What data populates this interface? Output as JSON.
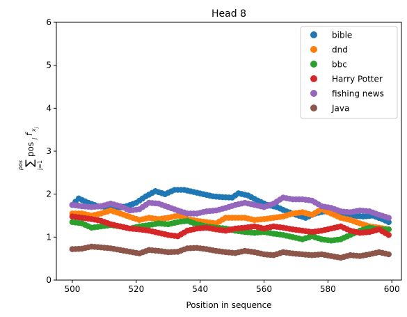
{
  "chart_data": {
    "type": "scatter",
    "title": "Head 8",
    "xlabel": "Position in sequence",
    "ylabel_parts": {
      "sum": "∑",
      "upper": "pos",
      "lower": "j=1",
      "main": "pos",
      "sub": "j",
      "f": "f",
      "fsub": "x",
      "fsubsub": "j"
    },
    "xlim": [
      495,
      603
    ],
    "ylim": [
      0,
      6
    ],
    "xticks": [
      500,
      520,
      540,
      560,
      580,
      600
    ],
    "yticks": [
      0,
      1,
      2,
      3,
      4,
      5,
      6
    ],
    "legend_position": "top-right",
    "x_range": [
      500,
      599
    ],
    "series": [
      {
        "name": "bible",
        "color": "#1f77b4",
        "keypoints": [
          [
            500,
            1.75
          ],
          [
            502,
            1.9
          ],
          [
            505,
            1.8
          ],
          [
            508,
            1.72
          ],
          [
            511,
            1.7
          ],
          [
            514,
            1.68
          ],
          [
            517,
            1.72
          ],
          [
            520,
            1.8
          ],
          [
            523,
            1.95
          ],
          [
            526,
            2.07
          ],
          [
            529,
            2.0
          ],
          [
            532,
            2.1
          ],
          [
            535,
            2.1
          ],
          [
            538,
            2.05
          ],
          [
            541,
            2.0
          ],
          [
            544,
            1.95
          ],
          [
            547,
            1.93
          ],
          [
            550,
            1.92
          ],
          [
            552,
            2.02
          ],
          [
            555,
            1.97
          ],
          [
            558,
            1.85
          ],
          [
            561,
            1.75
          ],
          [
            564,
            1.7
          ],
          [
            567,
            1.6
          ],
          [
            570,
            1.52
          ],
          [
            573,
            1.45
          ],
          [
            576,
            1.55
          ],
          [
            579,
            1.6
          ],
          [
            582,
            1.55
          ],
          [
            585,
            1.52
          ],
          [
            588,
            1.5
          ],
          [
            591,
            1.48
          ],
          [
            594,
            1.5
          ],
          [
            597,
            1.42
          ],
          [
            599,
            1.35
          ]
        ]
      },
      {
        "name": "dnd",
        "color": "#ff7f0e",
        "keypoints": [
          [
            500,
            1.55
          ],
          [
            503,
            1.55
          ],
          [
            506,
            1.5
          ],
          [
            509,
            1.55
          ],
          [
            512,
            1.62
          ],
          [
            515,
            1.55
          ],
          [
            518,
            1.47
          ],
          [
            521,
            1.4
          ],
          [
            524,
            1.45
          ],
          [
            527,
            1.42
          ],
          [
            530,
            1.45
          ],
          [
            533,
            1.5
          ],
          [
            536,
            1.42
          ],
          [
            539,
            1.38
          ],
          [
            542,
            1.35
          ],
          [
            545,
            1.32
          ],
          [
            548,
            1.45
          ],
          [
            551,
            1.45
          ],
          [
            554,
            1.45
          ],
          [
            557,
            1.4
          ],
          [
            560,
            1.42
          ],
          [
            563,
            1.45
          ],
          [
            566,
            1.48
          ],
          [
            569,
            1.55
          ],
          [
            572,
            1.58
          ],
          [
            575,
            1.52
          ],
          [
            578,
            1.65
          ],
          [
            581,
            1.55
          ],
          [
            584,
            1.45
          ],
          [
            587,
            1.4
          ],
          [
            590,
            1.32
          ],
          [
            593,
            1.25
          ],
          [
            596,
            1.22
          ],
          [
            599,
            1.18
          ]
        ]
      },
      {
        "name": "bbc",
        "color": "#2ca02c",
        "keypoints": [
          [
            500,
            1.35
          ],
          [
            503,
            1.32
          ],
          [
            506,
            1.22
          ],
          [
            509,
            1.25
          ],
          [
            512,
            1.28
          ],
          [
            515,
            1.25
          ],
          [
            518,
            1.2
          ],
          [
            521,
            1.25
          ],
          [
            524,
            1.28
          ],
          [
            527,
            1.32
          ],
          [
            530,
            1.3
          ],
          [
            533,
            1.35
          ],
          [
            536,
            1.38
          ],
          [
            539,
            1.3
          ],
          [
            542,
            1.25
          ],
          [
            545,
            1.22
          ],
          [
            548,
            1.2
          ],
          [
            551,
            1.15
          ],
          [
            554,
            1.12
          ],
          [
            557,
            1.1
          ],
          [
            560,
            1.12
          ],
          [
            563,
            1.08
          ],
          [
            566,
            1.05
          ],
          [
            569,
            1.0
          ],
          [
            572,
            0.95
          ],
          [
            575,
            1.02
          ],
          [
            578,
            0.95
          ],
          [
            581,
            0.92
          ],
          [
            584,
            0.95
          ],
          [
            587,
            1.05
          ],
          [
            590,
            1.15
          ],
          [
            593,
            1.22
          ],
          [
            596,
            1.18
          ],
          [
            599,
            1.18
          ]
        ]
      },
      {
        "name": "Harry Potter",
        "color": "#d62728",
        "keypoints": [
          [
            500,
            1.48
          ],
          [
            503,
            1.45
          ],
          [
            506,
            1.42
          ],
          [
            509,
            1.38
          ],
          [
            512,
            1.3
          ],
          [
            515,
            1.25
          ],
          [
            518,
            1.2
          ],
          [
            521,
            1.18
          ],
          [
            524,
            1.15
          ],
          [
            527,
            1.1
          ],
          [
            530,
            1.05
          ],
          [
            533,
            1.02
          ],
          [
            536,
            1.15
          ],
          [
            539,
            1.2
          ],
          [
            542,
            1.22
          ],
          [
            545,
            1.18
          ],
          [
            548,
            1.15
          ],
          [
            551,
            1.2
          ],
          [
            554,
            1.22
          ],
          [
            557,
            1.25
          ],
          [
            560,
            1.2
          ],
          [
            563,
            1.25
          ],
          [
            566,
            1.22
          ],
          [
            569,
            1.18
          ],
          [
            572,
            1.15
          ],
          [
            575,
            1.12
          ],
          [
            578,
            1.15
          ],
          [
            581,
            1.2
          ],
          [
            584,
            1.25
          ],
          [
            587,
            1.15
          ],
          [
            590,
            1.1
          ],
          [
            593,
            1.12
          ],
          [
            596,
            1.18
          ],
          [
            599,
            1.05
          ]
        ]
      },
      {
        "name": "fishing news",
        "color": "#9467bd",
        "keypoints": [
          [
            500,
            1.75
          ],
          [
            503,
            1.72
          ],
          [
            506,
            1.7
          ],
          [
            509,
            1.72
          ],
          [
            512,
            1.78
          ],
          [
            515,
            1.72
          ],
          [
            518,
            1.62
          ],
          [
            521,
            1.65
          ],
          [
            524,
            1.8
          ],
          [
            527,
            1.78
          ],
          [
            530,
            1.7
          ],
          [
            533,
            1.62
          ],
          [
            536,
            1.55
          ],
          [
            539,
            1.55
          ],
          [
            542,
            1.6
          ],
          [
            545,
            1.62
          ],
          [
            548,
            1.68
          ],
          [
            551,
            1.75
          ],
          [
            554,
            1.8
          ],
          [
            557,
            1.75
          ],
          [
            560,
            1.7
          ],
          [
            563,
            1.78
          ],
          [
            566,
            1.92
          ],
          [
            569,
            1.88
          ],
          [
            572,
            1.88
          ],
          [
            575,
            1.85
          ],
          [
            578,
            1.72
          ],
          [
            581,
            1.68
          ],
          [
            584,
            1.6
          ],
          [
            587,
            1.58
          ],
          [
            590,
            1.62
          ],
          [
            593,
            1.6
          ],
          [
            596,
            1.52
          ],
          [
            599,
            1.45
          ]
        ]
      },
      {
        "name": "Java",
        "color": "#8c564b",
        "keypoints": [
          [
            500,
            0.72
          ],
          [
            503,
            0.73
          ],
          [
            506,
            0.78
          ],
          [
            509,
            0.76
          ],
          [
            512,
            0.74
          ],
          [
            515,
            0.7
          ],
          [
            518,
            0.66
          ],
          [
            521,
            0.62
          ],
          [
            524,
            0.7
          ],
          [
            527,
            0.68
          ],
          [
            530,
            0.65
          ],
          [
            533,
            0.66
          ],
          [
            536,
            0.74
          ],
          [
            539,
            0.75
          ],
          [
            542,
            0.72
          ],
          [
            545,
            0.68
          ],
          [
            548,
            0.65
          ],
          [
            551,
            0.63
          ],
          [
            554,
            0.68
          ],
          [
            557,
            0.65
          ],
          [
            560,
            0.6
          ],
          [
            563,
            0.58
          ],
          [
            566,
            0.65
          ],
          [
            569,
            0.62
          ],
          [
            572,
            0.6
          ],
          [
            575,
            0.58
          ],
          [
            578,
            0.6
          ],
          [
            581,
            0.56
          ],
          [
            584,
            0.52
          ],
          [
            587,
            0.58
          ],
          [
            590,
            0.56
          ],
          [
            593,
            0.6
          ],
          [
            596,
            0.65
          ],
          [
            599,
            0.6
          ]
        ]
      }
    ]
  }
}
